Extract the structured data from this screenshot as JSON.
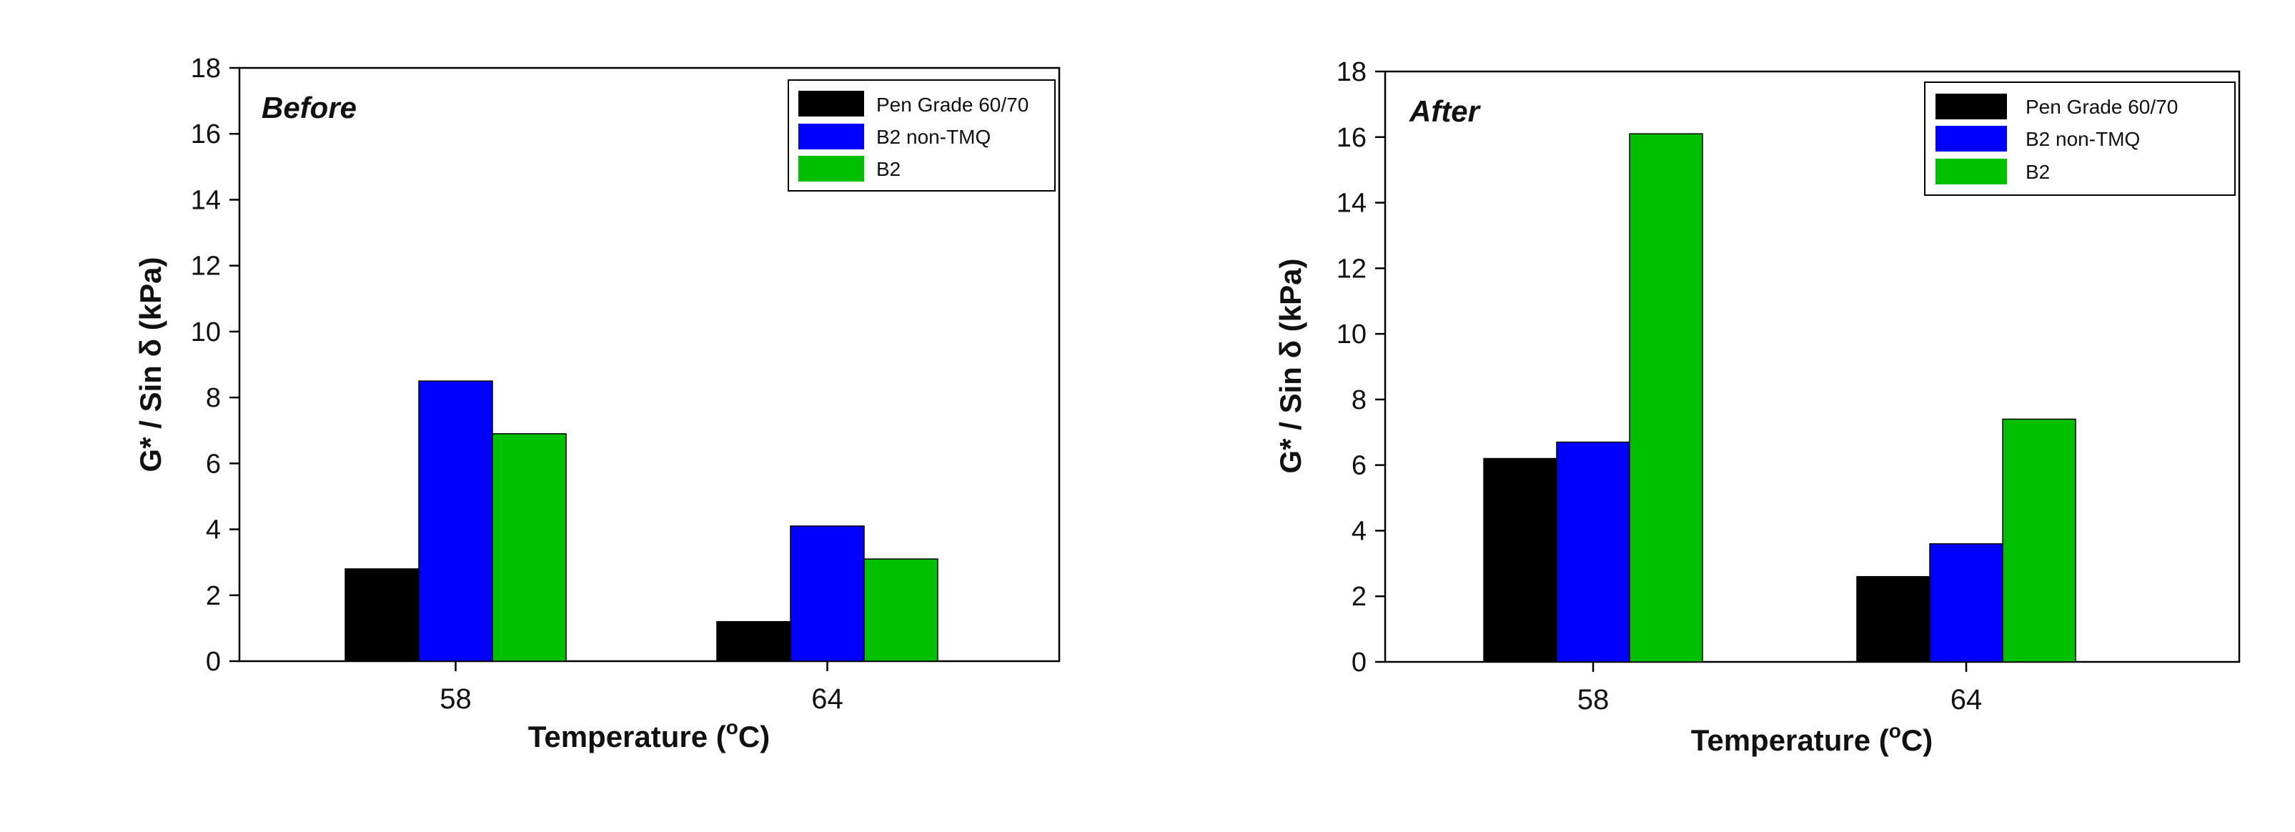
{
  "chart_data": [
    {
      "type": "bar",
      "title": "Before",
      "categories": [
        "58",
        "64"
      ],
      "series": [
        {
          "name": "Pen Grade 60/70",
          "color": "#000000",
          "values": [
            2.8,
            1.2
          ]
        },
        {
          "name": "B2 non-TMQ",
          "color": "#0000ff",
          "values": [
            8.5,
            4.1
          ]
        },
        {
          "name": "B2",
          "color": "#00c000",
          "values": [
            6.9,
            3.1
          ]
        }
      ],
      "xlabel_main": "Temperature (",
      "xlabel_sup": "o",
      "xlabel_end": "C)",
      "ylabel": "G* / Sin δ (kPa)",
      "ylim": [
        0,
        18
      ],
      "yticks": [
        "0",
        "2",
        "4",
        "6",
        "8",
        "10",
        "12",
        "14",
        "16",
        "18"
      ],
      "legend_position": "top-right"
    },
    {
      "type": "bar",
      "title": "After",
      "categories": [
        "58",
        "64"
      ],
      "series": [
        {
          "name": "Pen Grade 60/70",
          "color": "#000000",
          "values": [
            6.2,
            2.6
          ]
        },
        {
          "name": "B2 non-TMQ",
          "color": "#0000ff",
          "values": [
            6.7,
            3.6
          ]
        },
        {
          "name": "B2",
          "color": "#00c000",
          "values": [
            16.1,
            7.4
          ]
        }
      ],
      "xlabel_main": "Temperature (",
      "xlabel_sup": "o",
      "xlabel_end": "C)",
      "ylabel": "G* / Sin δ (kPa)",
      "ylim": [
        0,
        18
      ],
      "yticks": [
        "0",
        "2",
        "4",
        "6",
        "8",
        "10",
        "12",
        "14",
        "16",
        "18"
      ],
      "legend_position": "top-right"
    }
  ]
}
